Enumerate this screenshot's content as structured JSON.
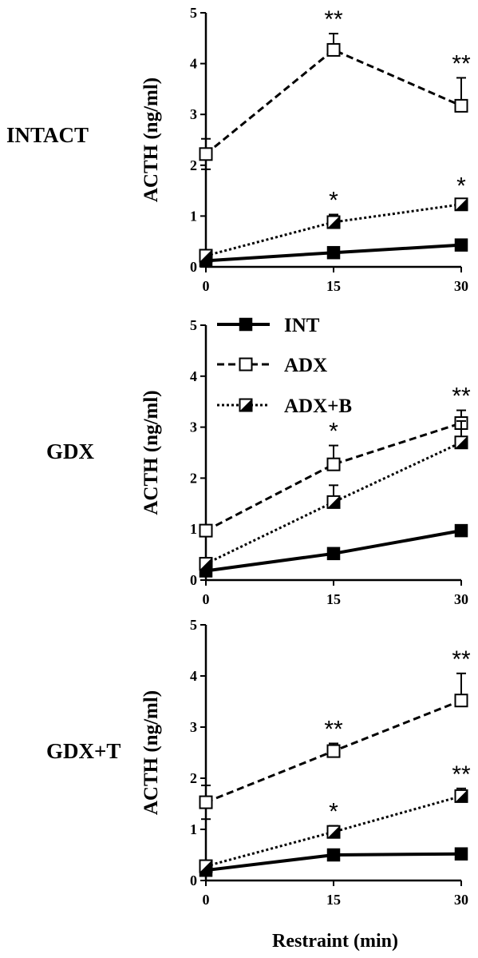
{
  "x_axis_title": "Restraint (min)",
  "legend": [
    {
      "key": "INT",
      "label": "INT"
    },
    {
      "key": "ADX",
      "label": "ADX"
    },
    {
      "key": "ADXB",
      "label": "ADX+B"
    }
  ],
  "styles": {
    "INT": {
      "line": "solid",
      "marker": "filled-square",
      "color": "#000000"
    },
    "ADX": {
      "line": "dashed",
      "marker": "open-square",
      "color": "#000000"
    },
    "ADXB": {
      "line": "dotted",
      "marker": "half-filled-square",
      "color": "#000000"
    }
  },
  "chart_data": [
    {
      "type": "line",
      "panel_label": "INTACT",
      "ylabel": "ACTH (ng/ml)",
      "ylim": [
        0,
        5
      ],
      "yticks": [
        "0",
        "1",
        "2",
        "3",
        "4",
        "5"
      ],
      "xticks": [
        "0",
        "15",
        "30"
      ],
      "x": [
        0,
        15,
        30
      ],
      "series": [
        {
          "key": "INT",
          "name": "INT",
          "values": [
            0.12,
            0.28,
            0.43
          ],
          "err": [
            0,
            0,
            0
          ],
          "sig": [
            "",
            "",
            ""
          ]
        },
        {
          "key": "ADX",
          "name": "ADX",
          "values": [
            2.22,
            4.27,
            3.17
          ],
          "err": [
            0.3,
            0.32,
            0.55
          ],
          "sig": [
            "",
            "**",
            "**"
          ]
        },
        {
          "key": "ADXB",
          "name": "ADX+B",
          "values": [
            0.22,
            0.88,
            1.23
          ],
          "err": [
            0,
            0.15,
            0.08
          ],
          "sig": [
            "",
            "*",
            "*"
          ]
        }
      ]
    },
    {
      "type": "line",
      "panel_label": "GDX",
      "ylabel": "ACTH (ng/ml)",
      "ylim": [
        0,
        5
      ],
      "yticks": [
        "0",
        "1",
        "2",
        "3",
        "4",
        "5"
      ],
      "xticks": [
        "0",
        "15",
        "30"
      ],
      "x": [
        0,
        15,
        30
      ],
      "series": [
        {
          "key": "INT",
          "name": "INT",
          "values": [
            0.18,
            0.52,
            0.97
          ],
          "err": [
            0,
            0,
            0
          ],
          "sig": [
            "",
            "",
            ""
          ]
        },
        {
          "key": "ADX",
          "name": "ADX",
          "values": [
            0.97,
            2.27,
            3.08
          ],
          "err": [
            0,
            0.37,
            0.25
          ],
          "sig": [
            "",
            "*",
            "**"
          ]
        },
        {
          "key": "ADXB",
          "name": "ADX+B",
          "values": [
            0.32,
            1.53,
            2.7
          ],
          "err": [
            0,
            0.33,
            0.42
          ],
          "sig": [
            "",
            "",
            ""
          ]
        }
      ]
    },
    {
      "type": "line",
      "panel_label": "GDX+T",
      "ylabel": "ACTH (ng/ml)",
      "ylim": [
        0,
        5
      ],
      "yticks": [
        "0",
        "1",
        "2",
        "3",
        "4",
        "5"
      ],
      "xticks": [
        "0",
        "15",
        "30"
      ],
      "x": [
        0,
        15,
        30
      ],
      "series": [
        {
          "key": "INT",
          "name": "INT",
          "values": [
            0.2,
            0.5,
            0.52
          ],
          "err": [
            0,
            0,
            0
          ],
          "sig": [
            "",
            "",
            ""
          ]
        },
        {
          "key": "ADX",
          "name": "ADX",
          "values": [
            1.53,
            2.53,
            3.52
          ],
          "err": [
            0.33,
            0.15,
            0.53
          ],
          "sig": [
            "",
            "**",
            "**"
          ]
        },
        {
          "key": "ADXB",
          "name": "ADX+B",
          "values": [
            0.28,
            0.95,
            1.65
          ],
          "err": [
            0.1,
            0.12,
            0.15
          ],
          "sig": [
            "",
            "*",
            "**"
          ]
        }
      ]
    }
  ]
}
